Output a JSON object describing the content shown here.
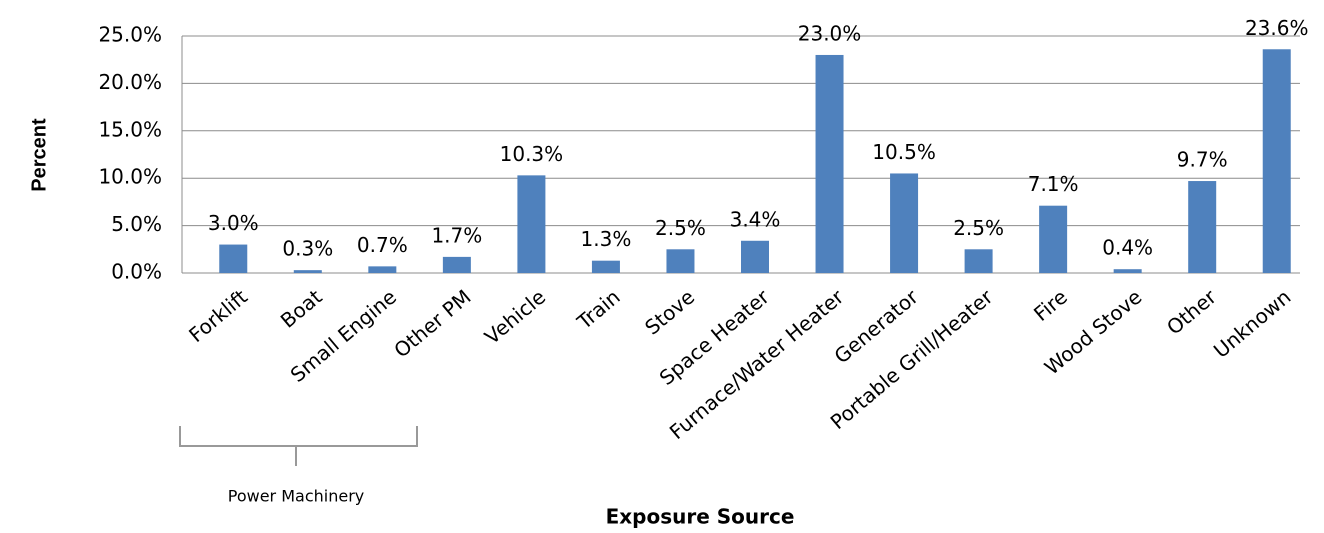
{
  "chart_data": {
    "type": "bar",
    "categories": [
      "Forklift",
      "Boat",
      "Small Engine",
      "Other PM",
      "Vehicle",
      "Train",
      "Stove",
      "Space Heater",
      "Furnace/Water Heater",
      "Generator",
      "Portable Grill/Heater",
      "Fire",
      "Wood Stove",
      "Other",
      "Unknown"
    ],
    "values": [
      3.0,
      0.3,
      0.7,
      1.7,
      10.3,
      1.3,
      2.5,
      3.4,
      23.0,
      10.5,
      2.5,
      7.1,
      0.4,
      9.7,
      23.6
    ],
    "value_labels": [
      "3.0%",
      "0.3%",
      "0.7%",
      "1.7%",
      "10.3%",
      "1.3%",
      "2.5%",
      "3.4%",
      "23.0%",
      "10.5%",
      "2.5%",
      "7.1%",
      "0.4%",
      "9.7%",
      "23.6%"
    ],
    "color": "#4f81bd",
    "ylim": [
      0,
      25
    ],
    "yticks": [
      {
        "value": 0,
        "label": "0.0%"
      },
      {
        "value": 5,
        "label": "5.0%"
      },
      {
        "value": 10,
        "label": "10.0%"
      },
      {
        "value": 15,
        "label": "15.0%"
      },
      {
        "value": 20,
        "label": "20.0%"
      },
      {
        "value": 25,
        "label": "25.0%"
      }
    ],
    "grid": true,
    "y_label": "Percent",
    "x_label": "Exposure Source",
    "annotation": "Power Machinery"
  }
}
